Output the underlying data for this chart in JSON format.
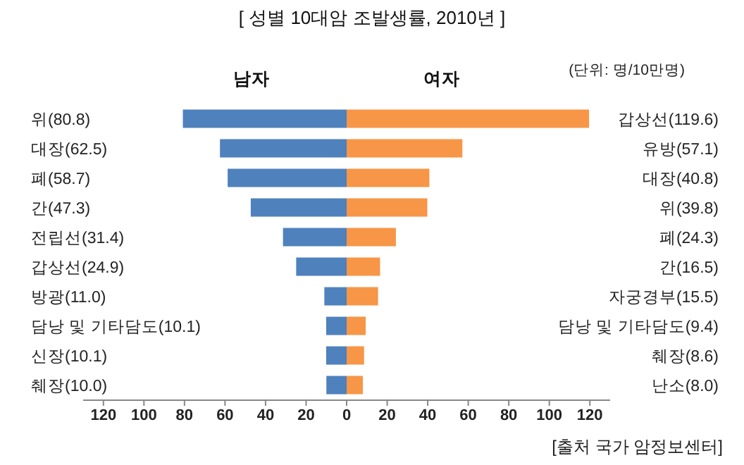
{
  "chart_data": {
    "type": "bar",
    "orientation": "horizontal",
    "stacked": true,
    "title": "[ 성별 10대암 조발생률, 2010년 ]",
    "categories": [
      "위(80.8)",
      "대장(62.5)",
      "폐(58.7)",
      "간(47.3)",
      "전립선(31.4)",
      "갑상선(24.9)",
      "방광(11.0)",
      "담낭 및 기타담도(10.1)",
      "신장(10.1)",
      "췌장(10.0)"
    ],
    "y2_categories": [
      "갑상선(119.6)",
      "유방(57.1)",
      "대장(40.8)",
      "위(39.8)",
      "폐(24.3)",
      "간(16.5)",
      "자궁경부(15.5)",
      "담낭 및 기타담도(9.4)",
      "췌장(8.6)",
      "난소(8.0)"
    ],
    "series": [
      {
        "name": "남자",
        "color": "#4f81bd",
        "values": [
          -80.8,
          -62.5,
          -58.7,
          -47.3,
          -31.4,
          -24.9,
          -11.0,
          -10.1,
          -10.1,
          -10.0
        ]
      },
      {
        "name": "여자",
        "color": "#f79646",
        "values": [
          119.6,
          57.1,
          40.8,
          39.8,
          24.3,
          16.5,
          15.5,
          9.4,
          8.6,
          8.0
        ]
      }
    ],
    "xlim": [
      -130,
      130
    ],
    "xticks": [
      {
        "value": -120,
        "label": "120"
      },
      {
        "value": -100,
        "label": "100"
      },
      {
        "value": -80,
        "label": "80"
      },
      {
        "value": -60,
        "label": "60"
      },
      {
        "value": -40,
        "label": "40"
      },
      {
        "value": -20,
        "label": "20"
      },
      0,
      20,
      40,
      60,
      80,
      100,
      120
    ],
    "annotations": [
      "(단위: 명/10만명)",
      "[출처 국가 암정보센터]"
    ]
  }
}
